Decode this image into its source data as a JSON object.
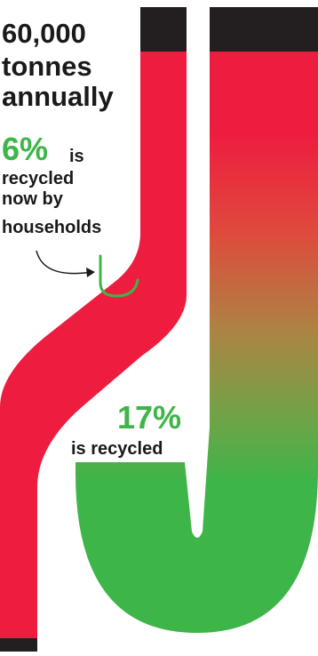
{
  "headline": {
    "line1": "60,000",
    "line2": "tonnes",
    "line3": "annually"
  },
  "household": {
    "percent": "6%",
    "suffix": "is",
    "line2": "recycled",
    "line3": "now by",
    "line4": "households"
  },
  "total": {
    "percent": "17%",
    "label": "is recycled"
  },
  "colors": {
    "red": "#ee1c3f",
    "green": "#3db549",
    "black": "#231f20"
  }
}
